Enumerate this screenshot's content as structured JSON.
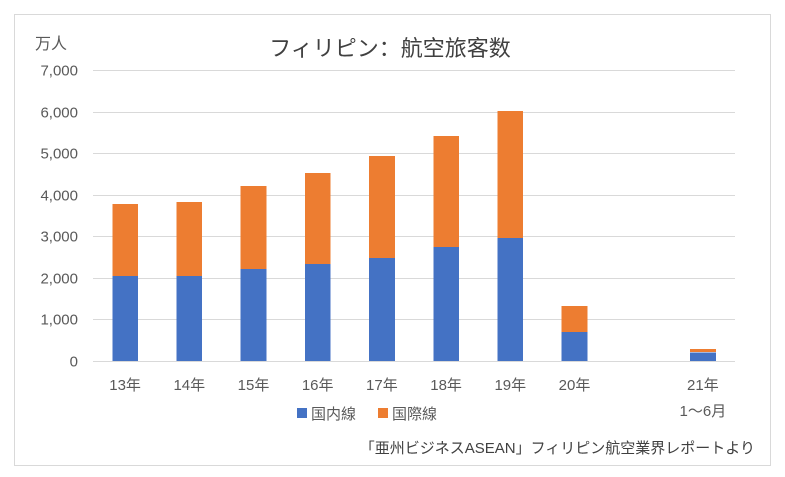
{
  "chart_data": {
    "type": "bar",
    "stacked": true,
    "title": "フィリピン：航空旅客数",
    "ylabel": "万人",
    "ylim": [
      0,
      7000
    ],
    "yticks": [
      0,
      1000,
      2000,
      3000,
      4000,
      5000,
      6000,
      7000
    ],
    "ytick_labels": [
      "0",
      "1,000",
      "2,000",
      "3,000",
      "4,000",
      "5,000",
      "6,000",
      "7,000"
    ],
    "categories": [
      [
        "13年"
      ],
      [
        "14年"
      ],
      [
        "15年"
      ],
      [
        "16年"
      ],
      [
        "17年"
      ],
      [
        "18年"
      ],
      [
        "19年"
      ],
      [
        "20年"
      ],
      [],
      [
        "21年",
        "1〜6月"
      ]
    ],
    "series": [
      {
        "name": "国内線",
        "color": "#4472C4",
        "values": [
          2050,
          2050,
          2210,
          2330,
          2480,
          2740,
          2960,
          700,
          null,
          210
        ]
      },
      {
        "name": "国際線",
        "color": "#ED7D31",
        "values": [
          1730,
          1780,
          2000,
          2190,
          2450,
          2670,
          3050,
          620,
          null,
          80
        ]
      }
    ],
    "grid": true,
    "legend": "bottom",
    "note": "「亜州ビジネスASEAN」フィリピン航空業界レポートより"
  }
}
